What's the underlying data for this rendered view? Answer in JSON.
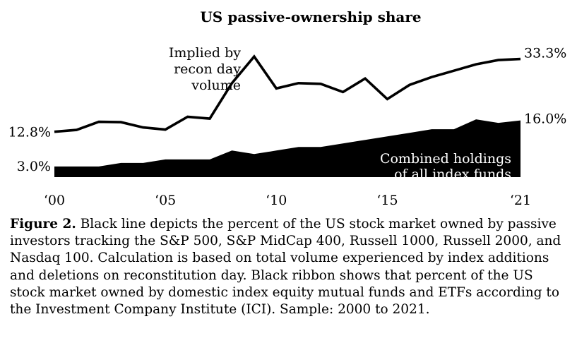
{
  "chart_data": {
    "type": "line",
    "title": "US passive-ownership share",
    "x": [
      2000,
      2001,
      2002,
      2003,
      2004,
      2005,
      2006,
      2007,
      2008,
      2009,
      2010,
      2011,
      2012,
      2013,
      2014,
      2015,
      2016,
      2017,
      2018,
      2019,
      2020,
      2021
    ],
    "xlim": [
      2000,
      2021
    ],
    "ylim": [
      0,
      37
    ],
    "x_tick_labels": [
      "‘00",
      "‘05",
      "‘10",
      "‘15",
      "‘21"
    ],
    "x_tick_values": [
      2000,
      2005,
      2010,
      2015,
      2021
    ],
    "series": [
      {
        "name": "Implied by recon day volume",
        "kind": "line",
        "values": [
          12.8,
          13.3,
          15.6,
          15.5,
          14.0,
          13.4,
          17.0,
          16.5,
          26.5,
          34.0,
          25.0,
          26.5,
          26.3,
          24.0,
          27.8,
          22.0,
          26.0,
          28.2,
          30.0,
          31.8,
          33.0,
          33.3
        ],
        "start_label": "12.8%",
        "end_label": "33.3%",
        "annotation": [
          "Implied by",
          "recon day",
          "volume"
        ]
      },
      {
        "name": "Combined holdings of all index funds",
        "kind": "area",
        "values": [
          3.0,
          3.0,
          3.0,
          4.0,
          4.0,
          5.0,
          5.0,
          5.0,
          7.5,
          6.5,
          7.5,
          8.5,
          8.5,
          9.5,
          10.5,
          11.5,
          12.5,
          13.5,
          13.5,
          16.3,
          15.3,
          16.0
        ],
        "start_label": "3.0%",
        "end_label": "16.0%",
        "annotation": [
          "Combined holdings",
          "of all index funds"
        ]
      }
    ]
  },
  "caption": {
    "label": "Figure 2.",
    "text": " Black line depicts the percent of the US stock market owned by passive investors tracking the S&P 500, S&P MidCap 400, Russell 1000, Russell 2000, and Nasdaq 100. Calculation is based on total volume experienced by index additions and deletions on reconstitution day. Black ribbon shows that percent of the US stock market owned by domestic index equity mutual funds and ETFs according to the Investment Company Institute (ICI). Sample: 2000 to 2021."
  }
}
